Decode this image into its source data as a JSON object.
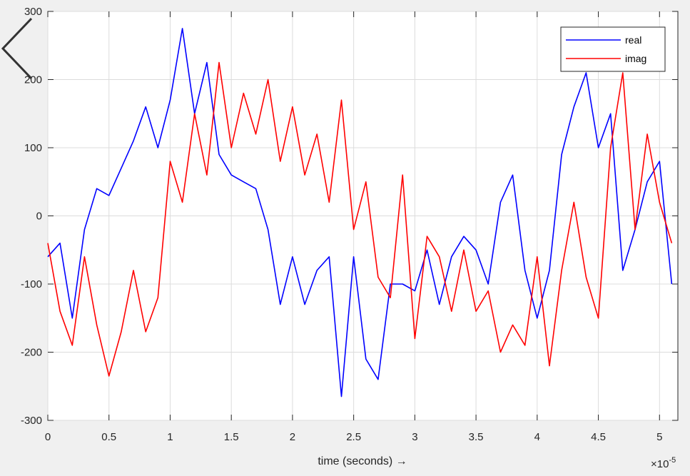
{
  "chart_data": {
    "type": "line",
    "xlabel": "time  (seconds) →",
    "ylabel": "",
    "x_exponent_label": "×10",
    "x_exponent_power": "-5",
    "xlim": [
      0,
      5.15
    ],
    "ylim": [
      -300,
      300
    ],
    "xticks": [
      "0",
      "0.5",
      "1",
      "1.5",
      "2",
      "2.5",
      "3",
      "3.5",
      "4",
      "4.5",
      "5"
    ],
    "xtick_values": [
      0,
      0.5,
      1,
      1.5,
      2,
      2.5,
      3,
      3.5,
      4,
      4.5,
      5
    ],
    "yticks": [
      "-300",
      "-200",
      "-100",
      "0",
      "100",
      "200",
      "300"
    ],
    "ytick_values": [
      -300,
      -200,
      -100,
      0,
      100,
      200,
      300
    ],
    "grid": true,
    "legend_position": "top-right",
    "x": [
      0,
      0.1,
      0.2,
      0.3,
      0.4,
      0.5,
      0.6,
      0.7,
      0.8,
      0.9,
      1.0,
      1.1,
      1.2,
      1.3,
      1.4,
      1.5,
      1.6,
      1.7,
      1.8,
      1.9,
      2.0,
      2.1,
      2.2,
      2.3,
      2.4,
      2.5,
      2.6,
      2.7,
      2.8,
      2.9,
      3.0,
      3.1,
      3.2,
      3.3,
      3.4,
      3.5,
      3.6,
      3.7,
      3.8,
      3.9,
      4.0,
      4.1,
      4.2,
      4.3,
      4.4,
      4.5,
      4.6,
      4.7,
      4.8,
      4.9,
      5.0,
      5.1
    ],
    "series": [
      {
        "name": "real",
        "color": "#0000ff",
        "values": [
          -60,
          -40,
          -150,
          -20,
          40,
          30,
          70,
          110,
          160,
          100,
          170,
          275,
          150,
          225,
          90,
          60,
          50,
          40,
          -20,
          -130,
          -60,
          -130,
          -80,
          -60,
          -265,
          -60,
          -210,
          -240,
          -100,
          -100,
          -110,
          -50,
          -130,
          -60,
          -30,
          -50,
          -100,
          20,
          60,
          -80,
          -150,
          -80,
          90,
          160,
          210,
          100,
          150,
          -80,
          -20,
          50,
          80,
          -100
        ]
      },
      {
        "name": "imag",
        "color": "#ff0000",
        "values": [
          -40,
          -140,
          -190,
          -60,
          -160,
          -235,
          -170,
          -80,
          -170,
          -120,
          80,
          20,
          150,
          60,
          225,
          100,
          180,
          120,
          200,
          80,
          160,
          60,
          120,
          20,
          170,
          -20,
          50,
          -90,
          -120,
          60,
          -180,
          -30,
          -60,
          -140,
          -50,
          -140,
          -110,
          -200,
          -160,
          -190,
          -60,
          -220,
          -80,
          20,
          -90,
          -150,
          100,
          210,
          -20,
          120,
          20,
          -40
        ]
      }
    ]
  }
}
